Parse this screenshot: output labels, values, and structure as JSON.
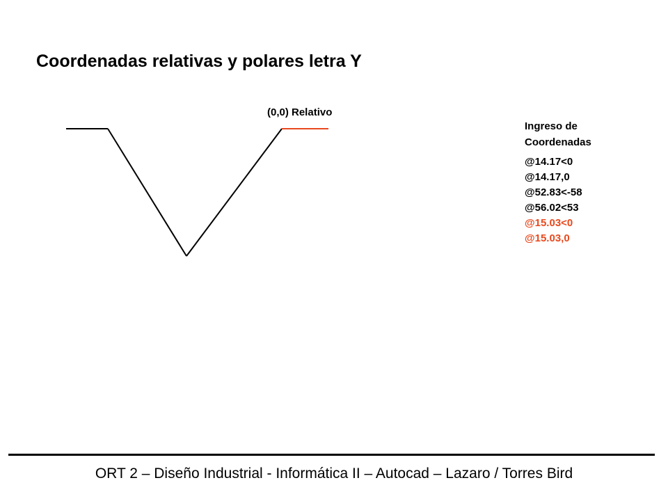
{
  "title": "Coordenadas relativas y polares letra Y",
  "origin_label": "(0,0) Relativo",
  "panel": {
    "heading_line1": "Ingreso de",
    "heading_line2": "Coordenadas",
    "entries": [
      {
        "text": "@14.17<0",
        "highlight": false
      },
      {
        "text": "@14.17,0",
        "highlight": false
      },
      {
        "text": "@52.83<-58",
        "highlight": false
      },
      {
        "text": "@56.02<53",
        "highlight": false
      },
      {
        "text": "@15.03<0",
        "highlight": true
      },
      {
        "text": "@15.03,0",
        "highlight": true
      }
    ]
  },
  "footer": "ORT 2 – Diseño Industrial - Informática II – Autocad – Lazaro / Torres Bird",
  "colors": {
    "text": "#000000",
    "highlight": "#e8491d",
    "line": "#000000"
  }
}
